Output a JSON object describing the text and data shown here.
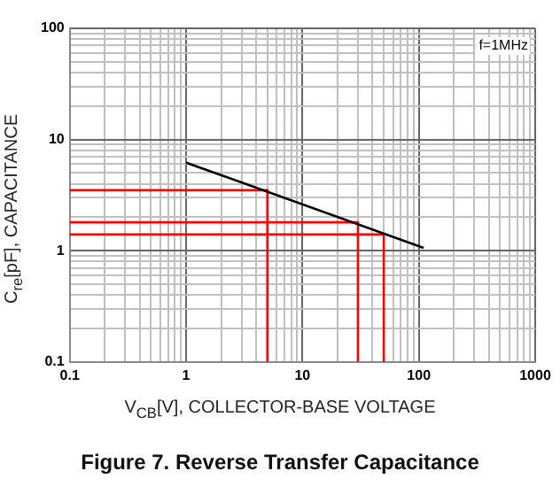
{
  "chart_data": {
    "type": "line",
    "title": "Figure 7. Reverse Transfer Capacitance",
    "xlabel": "V$_{CB}$[V], COLLECTOR-BASE VOLTAGE",
    "ylabel": "C$_{re}$[pF], CAPACITANCE",
    "annotations": [
      "f=1MHz"
    ],
    "log": "xy",
    "grid": true,
    "legend": false,
    "marker": "none",
    "line_style": "solid",
    "xlim": [
      0.1,
      1000
    ],
    "ylim": [
      0.1,
      100
    ],
    "xticks": [
      0.1,
      {
        "value": 0.2,
        "label": null
      },
      {
        "value": 0.3,
        "label": null
      },
      {
        "value": 0.4,
        "label": null
      },
      {
        "value": 0.5,
        "label": null
      },
      {
        "value": 0.6,
        "label": null
      },
      {
        "value": 0.7,
        "label": null
      },
      {
        "value": 0.8,
        "label": null
      },
      {
        "value": 0.9,
        "label": null
      },
      1,
      {
        "value": 2,
        "label": null
      },
      {
        "value": 3,
        "label": null
      },
      {
        "value": 4,
        "label": null
      },
      {
        "value": 5,
        "label": null
      },
      {
        "value": 6,
        "label": null
      },
      {
        "value": 7,
        "label": null
      },
      {
        "value": 8,
        "label": null
      },
      {
        "value": 9,
        "label": null
      },
      10,
      {
        "value": 20,
        "label": null
      },
      {
        "value": 30,
        "label": null
      },
      {
        "value": 40,
        "label": null
      },
      {
        "value": 50,
        "label": null
      },
      {
        "value": 60,
        "label": null
      },
      {
        "value": 70,
        "label": null
      },
      {
        "value": 80,
        "label": null
      },
      {
        "value": 90,
        "label": null
      },
      100,
      {
        "value": 200,
        "label": null
      },
      {
        "value": 300,
        "label": null
      },
      {
        "value": 400,
        "label": null
      },
      {
        "value": 500,
        "label": null
      },
      {
        "value": 600,
        "label": null
      },
      {
        "value": 700,
        "label": null
      },
      {
        "value": 800,
        "label": null
      },
      {
        "value": 900,
        "label": null
      },
      1000
    ],
    "yticks": [
      0.1,
      {
        "value": 0.2,
        "label": null
      },
      {
        "value": 0.3,
        "label": null
      },
      {
        "value": 0.4,
        "label": null
      },
      {
        "value": 0.5,
        "label": null
      },
      {
        "value": 0.6,
        "label": null
      },
      {
        "value": 0.7,
        "label": null
      },
      {
        "value": 0.8,
        "label": null
      },
      {
        "value": 0.9,
        "label": null
      },
      1,
      {
        "value": 2,
        "label": null
      },
      {
        "value": 3,
        "label": null
      },
      {
        "value": 4,
        "label": null
      },
      {
        "value": 5,
        "label": null
      },
      {
        "value": 6,
        "label": null
      },
      {
        "value": 7,
        "label": null
      },
      {
        "value": 8,
        "label": null
      },
      {
        "value": 9,
        "label": null
      },
      10,
      {
        "value": 20,
        "label": null
      },
      {
        "value": 30,
        "label": null
      },
      {
        "value": 40,
        "label": null
      },
      {
        "value": 50,
        "label": null
      },
      {
        "value": 60,
        "label": null
      },
      {
        "value": 70,
        "label": null
      },
      {
        "value": 80,
        "label": null
      },
      {
        "value": 90,
        "label": null
      },
      100
    ],
    "series": [
      {
        "color": "#000000",
        "x": [
          1,
          110
        ],
        "values": [
          6.2,
          1.06
        ]
      },
      {
        "color": "#ff0000",
        "x": [
          0.1,
          5,
          5
        ],
        "values": [
          3.5,
          3.5,
          0.1
        ]
      },
      {
        "color": "#ff0000",
        "x": [
          0.1,
          30,
          30
        ],
        "values": [
          1.8,
          1.8,
          0.1
        ]
      },
      {
        "color": "#ff0000",
        "x": [
          0.1,
          50,
          50
        ],
        "values": [
          1.4,
          1.4,
          0.1
        ]
      }
    ]
  }
}
